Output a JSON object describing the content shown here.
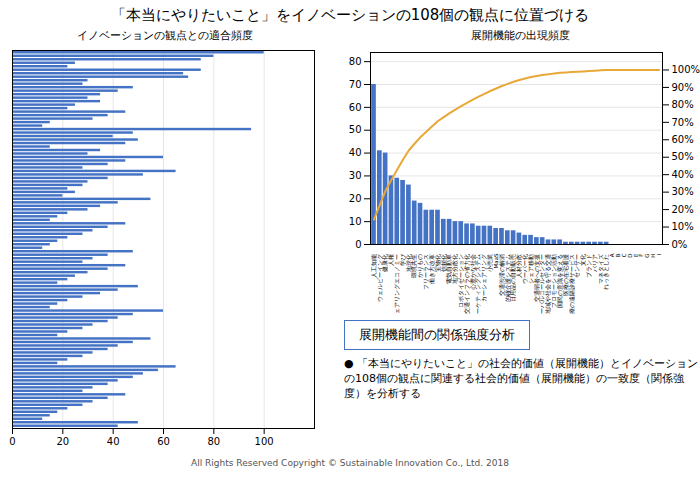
{
  "title": "「本当にやりたいこと」をイノベーションの108個の観点に位置づける",
  "chart_data": [
    {
      "type": "bar",
      "title": "イノベーションの観点との適合頻度",
      "orientation": "horizontal",
      "values": [
        100,
        80,
        75,
        25,
        22,
        75,
        68,
        70,
        30,
        28,
        48,
        42,
        35,
        30,
        35,
        25,
        22,
        45,
        38,
        32,
        15,
        12,
        95,
        48,
        40,
        50,
        45,
        15,
        35,
        30,
        60,
        45,
        38,
        28,
        65,
        52,
        38,
        30,
        28,
        22,
        25,
        20,
        55,
        42,
        35,
        30,
        22,
        18,
        15,
        45,
        38,
        32,
        28,
        22,
        18,
        15,
        12,
        48,
        38,
        32,
        28,
        45,
        38,
        30,
        25,
        22,
        18,
        50,
        42,
        35,
        28,
        22,
        18,
        15,
        60,
        48,
        42,
        38,
        32,
        28,
        22,
        18,
        55,
        48,
        42,
        38,
        32,
        28,
        22,
        18,
        65,
        58,
        52,
        48,
        42,
        38,
        32,
        28,
        45,
        38,
        32,
        28,
        22,
        18,
        15,
        12,
        50,
        42
      ],
      "color": "#4472C4",
      "xlim": [
        0,
        120
      ],
      "xticks": [
        0,
        20,
        40,
        60,
        80,
        100
      ],
      "grid": true,
      "tick_labels": "x"
    },
    {
      "type": "bar",
      "title": "展開機能の出現頻度",
      "categories": [
        "人工知能",
        "ウェルビーイング",
        "健康化",
        "人権",
        "シェアリングエコノミー",
        "学び",
        "地球化",
        "環境共生",
        "かりもの",
        "フリーランス",
        "働き方改革",
        "宝物化",
        "信頼化",
        "電気自動車",
        "地方分散化",
        "ロボタイゼーション",
        "交通インフラの省力化",
        "心豊かな社会",
        "マーケティングシステム",
        "カーシェアリング",
        "小売業",
        "MaaS",
        "交通渋滞の解消",
        "的確介護システム",
        "日用品の自動販売",
        "人材分散",
        "ウーバー化",
        "シェア移動",
        "交通弱者への支援",
        "グローバルコールセンター",
        "地域や社会を守る交通",
        "プロモーション活動",
        "国民の意識を変える",
        "医療の在宅看護",
        "医療の遠隔診療サービス",
        "センサー",
        "文化",
        "ブランド",
        "バリア",
        "マネタイズ",
        "れっきとした",
        "A",
        "B",
        "C",
        "D",
        "E",
        "F",
        "G",
        "H",
        "I"
      ],
      "series": [
        {
          "type": "bar",
          "color": "#4472C4",
          "values": [
            70,
            41,
            40,
            30,
            29,
            28,
            26,
            19,
            18,
            15,
            15,
            15,
            11,
            11,
            10,
            10,
            9,
            9,
            8,
            8,
            8,
            7,
            7,
            6,
            6,
            5,
            4,
            4,
            3,
            3,
            2,
            2,
            2,
            1,
            1,
            1,
            1,
            1,
            1,
            1,
            1,
            0,
            0,
            0,
            0,
            0,
            0,
            0,
            0,
            0
          ]
        },
        {
          "type": "line",
          "axis": "y2",
          "color": "#E8A838",
          "values": [
            14.3149,
            22.6994,
            30.8793,
            37.0143,
            42.9448,
            48.6708,
            53.9877,
            57.8732,
            61.5542,
            64.6217,
            67.6892,
            70.7566,
            73.0061,
            75.2556,
            77.3006,
            79.3456,
            81.1861,
            83.0266,
            84.6626,
            86.2986,
            87.9346,
            89.3661,
            90.7975,
            92.0245,
            93.2515,
            94.274,
            95.092,
            95.91,
            96.5235,
            97.137,
            97.546,
            97.955,
            98.364,
            98.5685,
            98.773,
            98.9775,
            99.182,
            99.3865,
            99.591,
            99.7955,
            100,
            100,
            100,
            100,
            100,
            100,
            100,
            100,
            100,
            100
          ]
        }
      ],
      "ylim": [
        0,
        84
      ],
      "yticks": [
        0,
        10,
        20,
        30,
        40,
        50,
        60,
        70,
        80
      ],
      "y2lim": [
        0,
        110
      ],
      "y2ticks": [
        {
          "value": 0,
          "label": "0%"
        },
        {
          "value": 10,
          "label": "10%"
        },
        {
          "value": 20,
          "label": "20%"
        },
        {
          "value": 30,
          "label": "30%"
        },
        {
          "value": 40,
          "label": "40%"
        },
        {
          "value": 50,
          "label": "50%"
        },
        {
          "value": 60,
          "label": "60%"
        },
        {
          "value": 70,
          "label": "70%"
        },
        {
          "value": 80,
          "label": "80%"
        },
        {
          "value": 90,
          "label": "90%"
        },
        {
          "value": 100,
          "label": "100%"
        }
      ],
      "grid": true
    }
  ],
  "annotations": [
    "展開機能間の関係強度分析",
    "● 「本当にやりたいこと」の社会的価値（展開機能）とイノベーションの108個の観点に関連する社会的価値（展開機能）の一致度（関係強度）を分析する",
    "All Rights Reserved Copyright  © Sustainable Innovation  Co., Ltd.  2018"
  ]
}
